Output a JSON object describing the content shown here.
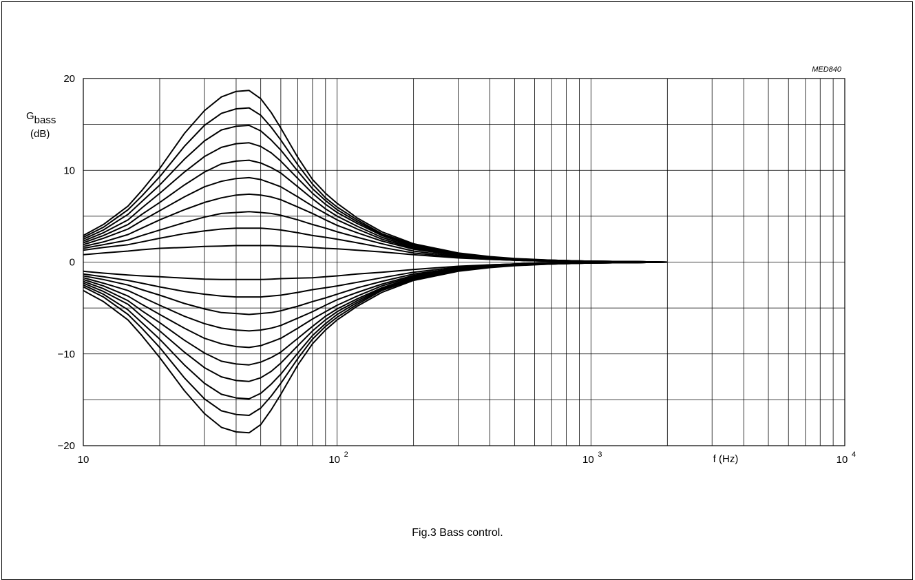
{
  "chart_data": {
    "type": "line",
    "figure_code": "MED840",
    "caption": "Fig.3  Bass control.",
    "ylabel_main": "G",
    "ylabel_sub": "bass",
    "ylabel_unit": "(dB)",
    "xlabel": "f  (Hz)",
    "x_scale": "log",
    "xlim": [
      10,
      10000
    ],
    "ylim": [
      -20,
      20
    ],
    "y_ticks": [
      20,
      10,
      0,
      -10,
      -20
    ],
    "y_tick_labels": [
      "20",
      "10",
      "0",
      "−10",
      "−20"
    ],
    "x_tick_labels": [
      {
        "base": "10",
        "exp": ""
      },
      {
        "base": "10",
        "exp": "2"
      },
      {
        "base": "10",
        "exp": "3"
      },
      {
        "base": "10",
        "exp": "4"
      }
    ],
    "grid": true,
    "center_frequency_hz": 45,
    "x": [
      10,
      12,
      15,
      17,
      20,
      25,
      30,
      35,
      40,
      45,
      50,
      55,
      60,
      70,
      80,
      90,
      100,
      120,
      150,
      200,
      300,
      400,
      500,
      700,
      1000,
      1500,
      2000
    ],
    "series": [
      {
        "peak_gain_db": 18.7,
        "values": [
          2.9,
          4.1,
          6.1,
          7.8,
          10.2,
          14.0,
          16.5,
          18.0,
          18.6,
          18.7,
          17.8,
          16.3,
          14.6,
          11.4,
          9.0,
          7.5,
          6.4,
          4.8,
          3.3,
          2.0,
          1.0,
          0.6,
          0.4,
          0.2,
          0.1,
          0.05,
          0.0
        ]
      },
      {
        "peak_gain_db": 16.8,
        "values": [
          2.7,
          3.8,
          5.7,
          7.2,
          9.3,
          12.6,
          14.9,
          16.2,
          16.7,
          16.8,
          16.0,
          14.7,
          13.3,
          10.6,
          8.5,
          7.0,
          6.0,
          4.6,
          3.1,
          1.9,
          0.95,
          0.55,
          0.35,
          0.2,
          0.1,
          0.05,
          0.0
        ]
      },
      {
        "peak_gain_db": 14.9,
        "values": [
          2.5,
          3.5,
          5.2,
          6.6,
          8.4,
          11.2,
          13.2,
          14.4,
          14.8,
          14.9,
          14.3,
          13.3,
          12.2,
          9.9,
          8.0,
          6.7,
          5.7,
          4.4,
          3.0,
          1.8,
          0.9,
          0.5,
          0.3,
          0.2,
          0.1,
          0.05,
          0.0
        ]
      },
      {
        "peak_gain_db": 13.0,
        "values": [
          2.3,
          3.2,
          4.6,
          5.9,
          7.5,
          9.8,
          11.5,
          12.5,
          12.9,
          13.0,
          12.6,
          11.9,
          11.0,
          9.1,
          7.5,
          6.3,
          5.4,
          4.2,
          2.9,
          1.7,
          0.85,
          0.5,
          0.3,
          0.2,
          0.1,
          0.05,
          0.0
        ]
      },
      {
        "peak_gain_db": 11.1,
        "values": [
          2.1,
          2.9,
          4.1,
          5.2,
          6.5,
          8.4,
          9.8,
          10.7,
          11.0,
          11.1,
          10.8,
          10.3,
          9.7,
          8.2,
          6.9,
          5.8,
          5.0,
          3.9,
          2.7,
          1.6,
          0.8,
          0.45,
          0.3,
          0.15,
          0.1,
          0.05,
          0.0
        ]
      },
      {
        "peak_gain_db": 9.2,
        "values": [
          1.9,
          2.6,
          3.6,
          4.5,
          5.6,
          7.1,
          8.2,
          8.8,
          9.1,
          9.2,
          9.0,
          8.6,
          8.2,
          7.1,
          6.1,
          5.3,
          4.6,
          3.6,
          2.5,
          1.5,
          0.75,
          0.4,
          0.25,
          0.15,
          0.1,
          0.05,
          0.0
        ]
      },
      {
        "peak_gain_db": 7.4,
        "values": [
          1.7,
          2.2,
          3.0,
          3.7,
          4.6,
          5.7,
          6.5,
          7.0,
          7.3,
          7.4,
          7.3,
          7.1,
          6.8,
          6.0,
          5.3,
          4.6,
          4.0,
          3.2,
          2.3,
          1.4,
          0.7,
          0.4,
          0.25,
          0.15,
          0.1,
          0.05,
          0.0
        ]
      },
      {
        "peak_gain_db": 5.5,
        "values": [
          1.5,
          1.9,
          2.4,
          2.9,
          3.5,
          4.3,
          4.9,
          5.3,
          5.4,
          5.5,
          5.4,
          5.3,
          5.1,
          4.6,
          4.1,
          3.7,
          3.3,
          2.7,
          2.0,
          1.2,
          0.6,
          0.35,
          0.2,
          0.1,
          0.05,
          0.0,
          0.0
        ]
      },
      {
        "peak_gain_db": 3.7,
        "values": [
          1.3,
          1.6,
          1.9,
          2.2,
          2.6,
          3.1,
          3.4,
          3.6,
          3.7,
          3.7,
          3.7,
          3.6,
          3.5,
          3.2,
          2.9,
          2.7,
          2.5,
          2.1,
          1.6,
          1.0,
          0.5,
          0.3,
          0.2,
          0.1,
          0.05,
          0.0,
          0.0
        ]
      },
      {
        "peak_gain_db": 1.8,
        "values": [
          0.8,
          1.0,
          1.2,
          1.35,
          1.5,
          1.6,
          1.7,
          1.75,
          1.8,
          1.8,
          1.8,
          1.8,
          1.75,
          1.7,
          1.6,
          1.5,
          1.45,
          1.3,
          1.1,
          0.8,
          0.45,
          0.3,
          0.2,
          0.1,
          0.05,
          0.0,
          0.0
        ]
      },
      {
        "peak_gain_db": -1.9,
        "values": [
          -1.0,
          -1.2,
          -1.4,
          -1.5,
          -1.6,
          -1.75,
          -1.85,
          -1.9,
          -1.9,
          -1.9,
          -1.9,
          -1.85,
          -1.8,
          -1.75,
          -1.7,
          -1.6,
          -1.5,
          -1.3,
          -1.1,
          -0.8,
          -0.45,
          -0.3,
          -0.2,
          -0.1,
          -0.05,
          0.0,
          0.0
        ]
      },
      {
        "peak_gain_db": -3.8,
        "values": [
          -1.3,
          -1.6,
          -2.0,
          -2.3,
          -2.7,
          -3.2,
          -3.5,
          -3.7,
          -3.8,
          -3.8,
          -3.8,
          -3.7,
          -3.6,
          -3.3,
          -3.0,
          -2.8,
          -2.6,
          -2.2,
          -1.7,
          -1.1,
          -0.55,
          -0.3,
          -0.2,
          -0.1,
          -0.05,
          0.0,
          0.0
        ]
      },
      {
        "peak_gain_db": -5.7,
        "values": [
          -1.5,
          -1.9,
          -2.5,
          -3.0,
          -3.6,
          -4.5,
          -5.1,
          -5.5,
          -5.6,
          -5.7,
          -5.6,
          -5.5,
          -5.3,
          -4.8,
          -4.3,
          -3.9,
          -3.5,
          -2.8,
          -2.1,
          -1.3,
          -0.65,
          -0.35,
          -0.2,
          -0.1,
          -0.05,
          0.0,
          0.0
        ]
      },
      {
        "peak_gain_db": -7.5,
        "values": [
          -1.7,
          -2.3,
          -3.1,
          -3.8,
          -4.7,
          -5.9,
          -6.7,
          -7.2,
          -7.4,
          -7.5,
          -7.4,
          -7.2,
          -6.9,
          -6.1,
          -5.4,
          -4.7,
          -4.1,
          -3.3,
          -2.4,
          -1.45,
          -0.7,
          -0.4,
          -0.25,
          -0.15,
          -0.1,
          -0.05,
          0.0
        ]
      },
      {
        "peak_gain_db": -9.3,
        "values": [
          -1.9,
          -2.6,
          -3.7,
          -4.6,
          -5.7,
          -7.2,
          -8.3,
          -8.9,
          -9.2,
          -9.3,
          -9.1,
          -8.7,
          -8.3,
          -7.2,
          -6.2,
          -5.4,
          -4.7,
          -3.7,
          -2.6,
          -1.55,
          -0.75,
          -0.4,
          -0.25,
          -0.15,
          -0.1,
          -0.05,
          0.0
        ]
      },
      {
        "peak_gain_db": -11.2,
        "values": [
          -2.1,
          -2.9,
          -4.2,
          -5.3,
          -6.6,
          -8.5,
          -9.9,
          -10.8,
          -11.1,
          -11.2,
          -10.9,
          -10.4,
          -9.8,
          -8.3,
          -7.0,
          -5.9,
          -5.1,
          -4.0,
          -2.8,
          -1.65,
          -0.8,
          -0.45,
          -0.3,
          -0.15,
          -0.1,
          -0.05,
          0.0
        ]
      },
      {
        "peak_gain_db": -13.0,
        "values": [
          -2.3,
          -3.2,
          -4.6,
          -5.9,
          -7.5,
          -9.8,
          -11.5,
          -12.5,
          -12.9,
          -13.0,
          -12.6,
          -11.9,
          -11.0,
          -9.1,
          -7.5,
          -6.3,
          -5.4,
          -4.2,
          -2.9,
          -1.7,
          -0.85,
          -0.5,
          -0.3,
          -0.2,
          -0.1,
          -0.05,
          0.0
        ]
      },
      {
        "peak_gain_db": -14.9,
        "values": [
          -2.5,
          -3.5,
          -5.2,
          -6.6,
          -8.4,
          -11.2,
          -13.2,
          -14.4,
          -14.8,
          -14.9,
          -14.3,
          -13.3,
          -12.2,
          -9.9,
          -8.0,
          -6.7,
          -5.7,
          -4.4,
          -3.0,
          -1.8,
          -0.9,
          -0.5,
          -0.3,
          -0.2,
          -0.1,
          -0.05,
          0.0
        ]
      },
      {
        "peak_gain_db": -16.7,
        "values": [
          -2.7,
          -3.8,
          -5.7,
          -7.2,
          -9.3,
          -12.6,
          -14.9,
          -16.2,
          -16.6,
          -16.7,
          -15.9,
          -14.6,
          -13.2,
          -10.5,
          -8.4,
          -7.0,
          -6.0,
          -4.6,
          -3.1,
          -1.9,
          -0.95,
          -0.55,
          -0.35,
          -0.2,
          -0.1,
          -0.05,
          0.0
        ]
      },
      {
        "peak_gain_db": -18.6,
        "values": [
          -3.1,
          -4.3,
          -6.3,
          -8.0,
          -10.4,
          -14.0,
          -16.5,
          -18.0,
          -18.5,
          -18.6,
          -17.7,
          -16.1,
          -14.4,
          -11.2,
          -8.9,
          -7.4,
          -6.3,
          -4.8,
          -3.3,
          -2.0,
          -1.0,
          -0.6,
          -0.4,
          -0.2,
          -0.1,
          -0.05,
          0.0
        ]
      }
    ]
  }
}
